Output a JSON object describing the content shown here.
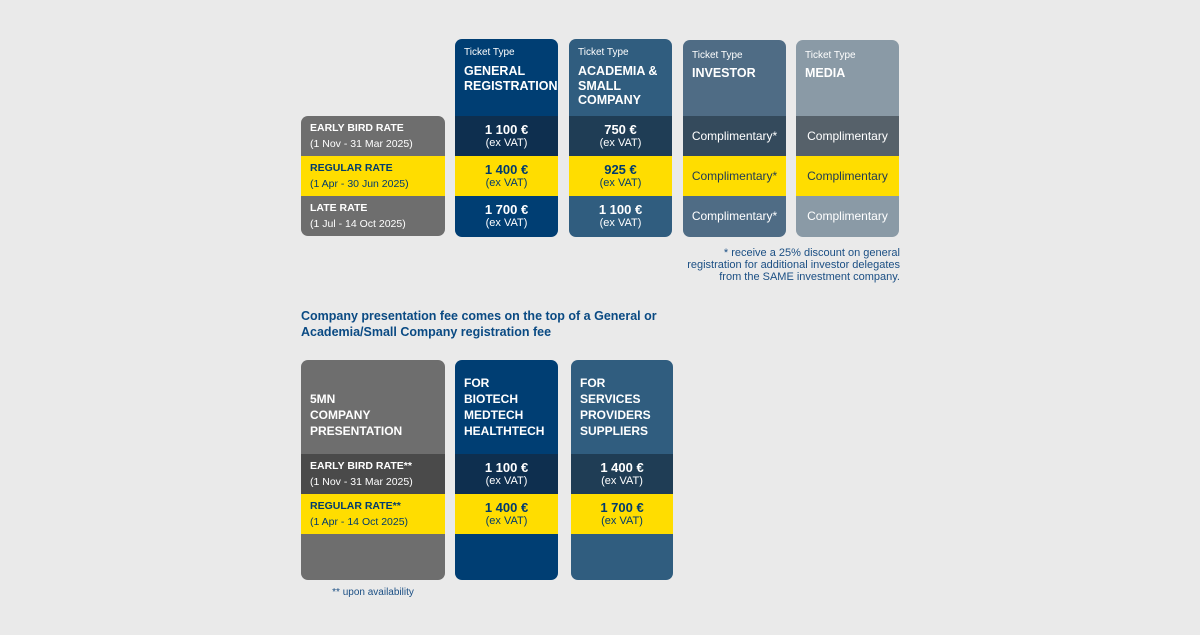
{
  "colors": {
    "background": "#eaeaea",
    "general": "#003e73",
    "academia": "#305d7f",
    "investor": "#4f6c85",
    "media": "#8a9aa6",
    "label_grey": "#6e6e6e",
    "highlight": "#ffdd00",
    "text_blue": "#0a4a83"
  },
  "ticket_type_label": "Ticket Type",
  "tickets": [
    {
      "name": "GENERAL\nREGISTRATION",
      "rates": [
        {
          "price": "1 100 €",
          "vat": "(ex VAT)"
        },
        {
          "price": "1 400 €",
          "vat": "(ex VAT)"
        },
        {
          "price": "1 700 €",
          "vat": "(ex VAT)"
        }
      ]
    },
    {
      "name": "ACADEMIA &\nSMALL\nCOMPANY",
      "rates": [
        {
          "price": "750 €",
          "vat": "(ex VAT)"
        },
        {
          "price": "925 €",
          "vat": "(ex VAT)"
        },
        {
          "price": "1 100 €",
          "vat": "(ex VAT)"
        }
      ]
    },
    {
      "name": "INVESTOR",
      "rates": [
        "Complimentary*",
        "Complimentary*",
        "Complimentary*"
      ]
    },
    {
      "name": "MEDIA",
      "rates": [
        "Complimentary",
        "Complimentary",
        "Complimentary"
      ]
    }
  ],
  "rate_labels": [
    {
      "name": "EARLY BIRD RATE",
      "dates": "(1 Nov - 31 Mar 2025)"
    },
    {
      "name": "REGULAR RATE",
      "dates": "(1 Apr - 30 Jun 2025)"
    },
    {
      "name": "LATE RATE",
      "dates": "(1 Jul - 14 Oct 2025)"
    }
  ],
  "investor_note": "* receive a 25% discount on general\nregistration for additional investor delegates\nfrom the SAME investment company.",
  "presentation_heading": "Company presentation fee comes on the top of a General or\nAcademia/Small Company registration fee",
  "presentation": {
    "title": "5MN\nCOMPANY\nPRESENTATION",
    "rate_labels": [
      {
        "name": "EARLY BIRD RATE**",
        "dates": "(1 Nov - 31 Mar 2025)"
      },
      {
        "name": "REGULAR RATE**",
        "dates": "(1 Apr - 14 Oct 2025)"
      }
    ],
    "columns": [
      {
        "name": "FOR\nBIOTECH\nMEDTECH\nHEALTHTECH",
        "rates": [
          {
            "price": "1 100 €",
            "vat": "(ex VAT)"
          },
          {
            "price": "1 400 €",
            "vat": "(ex VAT)"
          }
        ]
      },
      {
        "name": "FOR\nSERVICES\nPROVIDERS\nSUPPLIERS",
        "rates": [
          {
            "price": "1 400 €",
            "vat": "(ex VAT)"
          },
          {
            "price": "1 700 €",
            "vat": "(ex VAT)"
          }
        ]
      }
    ],
    "footnote": "** upon availability"
  }
}
